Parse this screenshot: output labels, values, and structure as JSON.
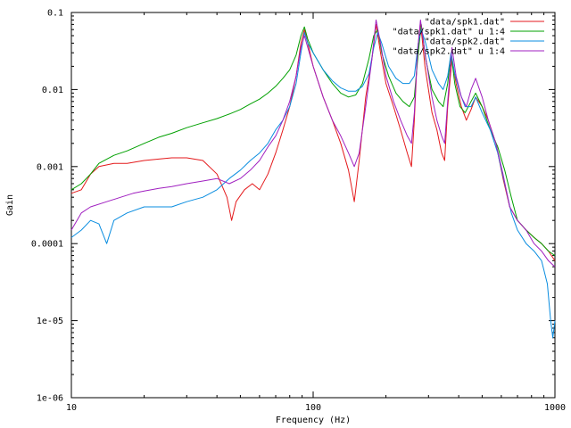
{
  "chart_data": {
    "type": "line",
    "title": "",
    "xlabel": "Frequency (Hz)",
    "ylabel": "Gain",
    "xscale": "log",
    "yscale": "log",
    "xlim": [
      10,
      1000
    ],
    "ylim": [
      1e-06,
      0.1
    ],
    "grid": false,
    "legend_position": "top-right",
    "x_ticks": [
      {
        "value": 10,
        "label": "10"
      },
      {
        "value": 100,
        "label": "100"
      },
      {
        "value": 1000,
        "label": "1000"
      }
    ],
    "y_ticks": [
      {
        "value": 1e-06,
        "label": "1e-06"
      },
      {
        "value": 1e-05,
        "label": "1e-05"
      },
      {
        "value": 0.0001,
        "label": "0.0001"
      },
      {
        "value": 0.001,
        "label": "0.001"
      },
      {
        "value": 0.01,
        "label": "0.01"
      },
      {
        "value": 0.1,
        "label": "0.1"
      }
    ],
    "series": [
      {
        "name": "\"data/spk1.dat\"",
        "color": "#e41a1c",
        "points": [
          [
            10,
            0.00045
          ],
          [
            11,
            0.0005
          ],
          [
            12,
            0.0008
          ],
          [
            13,
            0.001
          ],
          [
            15,
            0.0011
          ],
          [
            17,
            0.0011
          ],
          [
            20,
            0.0012
          ],
          [
            23,
            0.00125
          ],
          [
            26,
            0.0013
          ],
          [
            30,
            0.0013
          ],
          [
            35,
            0.0012
          ],
          [
            40,
            0.0008
          ],
          [
            44,
            0.0004
          ],
          [
            46,
            0.0002
          ],
          [
            48,
            0.00035
          ],
          [
            52,
            0.0005
          ],
          [
            56,
            0.0006
          ],
          [
            60,
            0.0005
          ],
          [
            65,
            0.0008
          ],
          [
            70,
            0.0015
          ],
          [
            75,
            0.003
          ],
          [
            80,
            0.006
          ],
          [
            85,
            0.015
          ],
          [
            89,
            0.04
          ],
          [
            92,
            0.06
          ],
          [
            95,
            0.04
          ],
          [
            100,
            0.02
          ],
          [
            110,
            0.008
          ],
          [
            120,
            0.004
          ],
          [
            130,
            0.002
          ],
          [
            140,
            0.0009
          ],
          [
            148,
            0.00035
          ],
          [
            155,
            0.0012
          ],
          [
            165,
            0.008
          ],
          [
            175,
            0.025
          ],
          [
            182,
            0.07
          ],
          [
            190,
            0.03
          ],
          [
            200,
            0.012
          ],
          [
            215,
            0.006
          ],
          [
            230,
            0.003
          ],
          [
            245,
            0.0015
          ],
          [
            255,
            0.001
          ],
          [
            262,
            0.004
          ],
          [
            270,
            0.03
          ],
          [
            278,
            0.075
          ],
          [
            290,
            0.02
          ],
          [
            310,
            0.005
          ],
          [
            325,
            0.003
          ],
          [
            340,
            0.0015
          ],
          [
            350,
            0.0012
          ],
          [
            360,
            0.006
          ],
          [
            375,
            0.025
          ],
          [
            390,
            0.012
          ],
          [
            410,
            0.006
          ],
          [
            430,
            0.004
          ],
          [
            450,
            0.0055
          ],
          [
            470,
            0.008
          ],
          [
            500,
            0.006
          ],
          [
            530,
            0.004
          ],
          [
            570,
            0.002
          ],
          [
            610,
            0.0007
          ],
          [
            650,
            0.0003
          ],
          [
            700,
            0.0002
          ],
          [
            760,
            0.00015
          ],
          [
            820,
            0.00012
          ],
          [
            880,
            0.0001
          ],
          [
            940,
            8e-05
          ],
          [
            1000,
            6e-05
          ]
        ]
      },
      {
        "name": "\"data/spk1.dat\" u 1:4",
        "color": "#00a000",
        "points": [
          [
            10,
            0.0005
          ],
          [
            11,
            0.0006
          ],
          [
            12,
            0.0008
          ],
          [
            13,
            0.0011
          ],
          [
            15,
            0.0014
          ],
          [
            17,
            0.0016
          ],
          [
            20,
            0.002
          ],
          [
            23,
            0.0024
          ],
          [
            26,
            0.0027
          ],
          [
            30,
            0.0032
          ],
          [
            35,
            0.0037
          ],
          [
            40,
            0.0042
          ],
          [
            45,
            0.0048
          ],
          [
            50,
            0.0055
          ],
          [
            55,
            0.0065
          ],
          [
            60,
            0.0075
          ],
          [
            65,
            0.009
          ],
          [
            70,
            0.011
          ],
          [
            75,
            0.014
          ],
          [
            80,
            0.018
          ],
          [
            85,
            0.028
          ],
          [
            89,
            0.05
          ],
          [
            92,
            0.065
          ],
          [
            95,
            0.045
          ],
          [
            100,
            0.03
          ],
          [
            110,
            0.018
          ],
          [
            120,
            0.012
          ],
          [
            130,
            0.009
          ],
          [
            140,
            0.008
          ],
          [
            150,
            0.0085
          ],
          [
            160,
            0.012
          ],
          [
            170,
            0.025
          ],
          [
            178,
            0.05
          ],
          [
            185,
            0.06
          ],
          [
            192,
            0.03
          ],
          [
            205,
            0.015
          ],
          [
            220,
            0.009
          ],
          [
            235,
            0.007
          ],
          [
            250,
            0.006
          ],
          [
            262,
            0.008
          ],
          [
            272,
            0.03
          ],
          [
            280,
            0.07
          ],
          [
            292,
            0.025
          ],
          [
            310,
            0.01
          ],
          [
            330,
            0.007
          ],
          [
            345,
            0.006
          ],
          [
            360,
            0.012
          ],
          [
            372,
            0.03
          ],
          [
            385,
            0.012
          ],
          [
            405,
            0.006
          ],
          [
            425,
            0.005
          ],
          [
            450,
            0.007
          ],
          [
            470,
            0.009
          ],
          [
            500,
            0.006
          ],
          [
            540,
            0.003
          ],
          [
            580,
            0.0018
          ],
          [
            620,
            0.0009
          ],
          [
            660,
            0.0004
          ],
          [
            700,
            0.0002
          ],
          [
            760,
            0.00015
          ],
          [
            820,
            0.00012
          ],
          [
            880,
            0.0001
          ],
          [
            940,
            8e-05
          ],
          [
            1000,
            7e-05
          ]
        ]
      },
      {
        "name": "\"data/spk2.dat\"",
        "color": "#0a8de0",
        "points": [
          [
            10,
            0.00012
          ],
          [
            11,
            0.00015
          ],
          [
            12,
            0.0002
          ],
          [
            13,
            0.00018
          ],
          [
            14,
            0.0001
          ],
          [
            15,
            0.0002
          ],
          [
            17,
            0.00025
          ],
          [
            20,
            0.0003
          ],
          [
            23,
            0.0003
          ],
          [
            26,
            0.0003
          ],
          [
            30,
            0.00035
          ],
          [
            35,
            0.0004
          ],
          [
            40,
            0.0005
          ],
          [
            45,
            0.0007
          ],
          [
            50,
            0.0009
          ],
          [
            55,
            0.0012
          ],
          [
            60,
            0.0015
          ],
          [
            65,
            0.002
          ],
          [
            70,
            0.003
          ],
          [
            75,
            0.004
          ],
          [
            80,
            0.006
          ],
          [
            85,
            0.012
          ],
          [
            89,
            0.03
          ],
          [
            92,
            0.055
          ],
          [
            95,
            0.04
          ],
          [
            100,
            0.03
          ],
          [
            110,
            0.018
          ],
          [
            120,
            0.013
          ],
          [
            130,
            0.0105
          ],
          [
            140,
            0.0095
          ],
          [
            150,
            0.0095
          ],
          [
            160,
            0.011
          ],
          [
            170,
            0.016
          ],
          [
            178,
            0.035
          ],
          [
            185,
            0.055
          ],
          [
            192,
            0.04
          ],
          [
            205,
            0.02
          ],
          [
            220,
            0.014
          ],
          [
            235,
            0.012
          ],
          [
            250,
            0.012
          ],
          [
            262,
            0.015
          ],
          [
            272,
            0.04
          ],
          [
            280,
            0.06
          ],
          [
            292,
            0.04
          ],
          [
            310,
            0.018
          ],
          [
            330,
            0.012
          ],
          [
            345,
            0.01
          ],
          [
            360,
            0.015
          ],
          [
            372,
            0.03
          ],
          [
            385,
            0.016
          ],
          [
            405,
            0.009
          ],
          [
            425,
            0.006
          ],
          [
            450,
            0.006
          ],
          [
            470,
            0.008
          ],
          [
            500,
            0.005
          ],
          [
            540,
            0.003
          ],
          [
            580,
            0.0015
          ],
          [
            620,
            0.0006
          ],
          [
            660,
            0.00025
          ],
          [
            700,
            0.00015
          ],
          [
            760,
            0.0001
          ],
          [
            820,
            8e-05
          ],
          [
            880,
            6e-05
          ],
          [
            930,
            3e-05
          ],
          [
            960,
            1e-05
          ],
          [
            980,
            6e-06
          ],
          [
            1000,
            1e-05
          ]
        ]
      },
      {
        "name": "\"data/spk2.dat\" u 1:4",
        "color": "#a020c0",
        "points": [
          [
            10,
            0.00015
          ],
          [
            11,
            0.00025
          ],
          [
            12,
            0.0003
          ],
          [
            14,
            0.00035
          ],
          [
            16,
            0.0004
          ],
          [
            18,
            0.00045
          ],
          [
            20,
            0.00048
          ],
          [
            23,
            0.00052
          ],
          [
            26,
            0.00055
          ],
          [
            30,
            0.0006
          ],
          [
            35,
            0.00065
          ],
          [
            40,
            0.0007
          ],
          [
            45,
            0.0006
          ],
          [
            50,
            0.0007
          ],
          [
            55,
            0.0009
          ],
          [
            60,
            0.0012
          ],
          [
            65,
            0.0018
          ],
          [
            70,
            0.0025
          ],
          [
            75,
            0.004
          ],
          [
            80,
            0.007
          ],
          [
            85,
            0.015
          ],
          [
            89,
            0.035
          ],
          [
            92,
            0.05
          ],
          [
            95,
            0.035
          ],
          [
            100,
            0.02
          ],
          [
            110,
            0.008
          ],
          [
            120,
            0.004
          ],
          [
            130,
            0.0025
          ],
          [
            140,
            0.0015
          ],
          [
            148,
            0.001
          ],
          [
            155,
            0.0015
          ],
          [
            165,
            0.006
          ],
          [
            175,
            0.025
          ],
          [
            182,
            0.08
          ],
          [
            190,
            0.04
          ],
          [
            200,
            0.015
          ],
          [
            215,
            0.007
          ],
          [
            230,
            0.004
          ],
          [
            245,
            0.0025
          ],
          [
            255,
            0.002
          ],
          [
            262,
            0.005
          ],
          [
            270,
            0.03
          ],
          [
            278,
            0.08
          ],
          [
            290,
            0.03
          ],
          [
            310,
            0.008
          ],
          [
            325,
            0.004
          ],
          [
            340,
            0.0025
          ],
          [
            350,
            0.002
          ],
          [
            360,
            0.007
          ],
          [
            375,
            0.035
          ],
          [
            390,
            0.015
          ],
          [
            410,
            0.008
          ],
          [
            430,
            0.006
          ],
          [
            450,
            0.01
          ],
          [
            470,
            0.014
          ],
          [
            500,
            0.008
          ],
          [
            530,
            0.004
          ],
          [
            570,
            0.002
          ],
          [
            610,
            0.0008
          ],
          [
            650,
            0.0003
          ],
          [
            700,
            0.0002
          ],
          [
            760,
            0.00015
          ],
          [
            820,
            0.0001
          ],
          [
            880,
            8e-05
          ],
          [
            940,
            6e-05
          ],
          [
            1000,
            5e-05
          ]
        ]
      }
    ]
  }
}
